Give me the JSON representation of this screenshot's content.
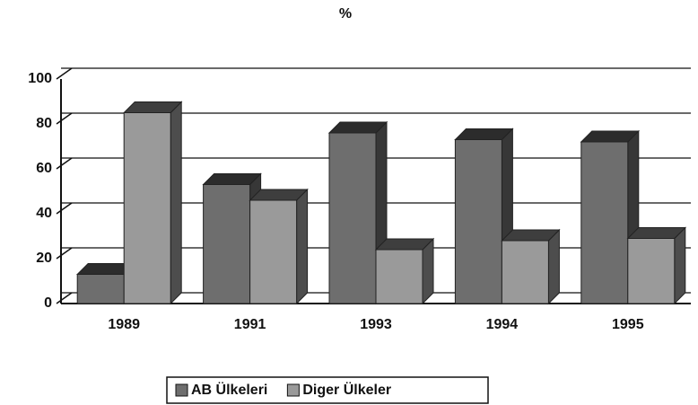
{
  "chart_data": {
    "type": "bar",
    "title": "%",
    "categories": [
      "1989",
      "1991",
      "1993",
      "1994",
      "1995"
    ],
    "series": [
      {
        "name": "AB Ülkeleri",
        "color": "#6e6e6e",
        "values": [
          13,
          53,
          76,
          73,
          72
        ]
      },
      {
        "name": "Diger Ülkeler",
        "color": "#9a9a9a",
        "values": [
          85,
          46,
          24,
          28,
          29
        ]
      }
    ],
    "ylim": [
      0,
      100
    ],
    "yticks": [
      0,
      20,
      40,
      60,
      80,
      100
    ],
    "grid": true,
    "legend": "bottom"
  }
}
